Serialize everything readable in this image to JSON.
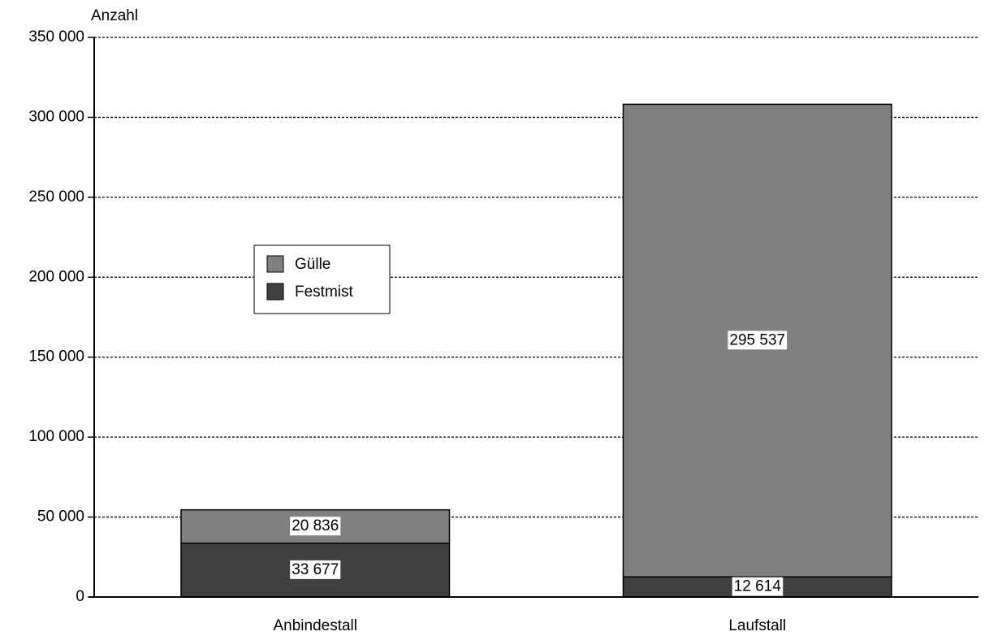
{
  "chart_data": {
    "type": "stacked_bar",
    "y_label": "Anzahl",
    "categories": [
      "Anbindestall",
      "Laufstall"
    ],
    "series": [
      {
        "name": "Festmist",
        "color": "#404040",
        "values": [
          33677,
          12614
        ],
        "value_labels": [
          "33 677",
          "12 614"
        ]
      },
      {
        "name": "Gülle",
        "color": "#808080",
        "values": [
          20836,
          295537
        ],
        "value_labels": [
          "20 836",
          "295 537"
        ]
      }
    ],
    "ylim": [
      0,
      350000
    ],
    "yticks": [
      0,
      {
        "value": 50000,
        "label": "50 000"
      },
      {
        "value": 100000,
        "label": "100 000"
      },
      {
        "value": 150000,
        "label": "150 000"
      },
      {
        "value": 200000,
        "label": "200 000"
      },
      {
        "value": 250000,
        "label": "250 000"
      },
      {
        "value": 300000,
        "label": "300 000"
      },
      {
        "value": 350000,
        "label": "350 000"
      }
    ],
    "grid": true
  }
}
